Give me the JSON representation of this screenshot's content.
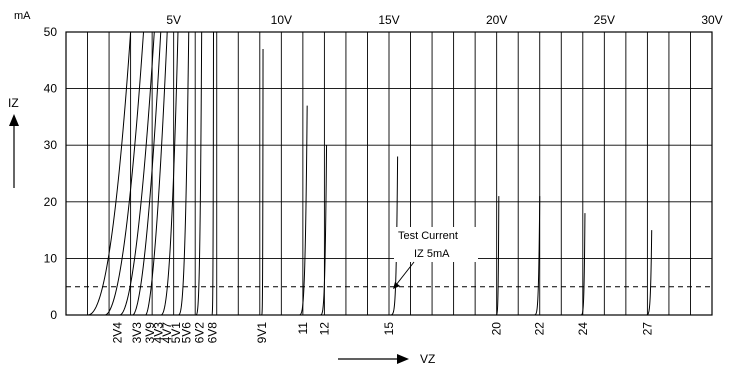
{
  "chart_data": {
    "type": "line",
    "title": "",
    "y_unit": "mA",
    "ylabel": "IZ",
    "xlabel": "VZ",
    "xlim": [
      0,
      30
    ],
    "ylim": [
      0,
      50
    ],
    "grid": true,
    "x_top_ticks": [
      {
        "v": 5,
        "label": "5V"
      },
      {
        "v": 10,
        "label": "10V"
      },
      {
        "v": 15,
        "label": "15V"
      },
      {
        "v": 20,
        "label": "20V"
      },
      {
        "v": 25,
        "label": "25V"
      },
      {
        "v": 30,
        "label": "30V"
      }
    ],
    "y_ticks": [
      {
        "v": 0,
        "label": "0"
      },
      {
        "v": 10,
        "label": "10"
      },
      {
        "v": 20,
        "label": "20"
      },
      {
        "v": 30,
        "label": "30"
      },
      {
        "v": 40,
        "label": "40"
      },
      {
        "v": 50,
        "label": "50"
      }
    ],
    "test_current": {
      "value": 5,
      "label_line1": "Test Current",
      "label_line2": "IZ 5mA"
    },
    "series": [
      {
        "name": "2V4",
        "vz": 2.4,
        "v_start": 1.0,
        "v_end": 3.0,
        "i_max": 50,
        "steep": 2.2
      },
      {
        "name": "3V3",
        "vz": 3.3,
        "v_start": 1.8,
        "v_end": 3.6,
        "i_max": 50,
        "steep": 2.0
      },
      {
        "name": "3V9",
        "vz": 3.9,
        "v_start": 2.5,
        "v_end": 4.1,
        "i_max": 50,
        "steep": 1.9
      },
      {
        "name": "4V3",
        "vz": 4.3,
        "v_start": 3.1,
        "v_end": 4.4,
        "i_max": 50,
        "steep": 1.8
      },
      {
        "name": "4V7",
        "vz": 4.7,
        "v_start": 3.7,
        "v_end": 4.7,
        "i_max": 50,
        "steep": 1.7
      },
      {
        "name": "5V1",
        "vz": 5.1,
        "v_start": 4.4,
        "v_end": 5.2,
        "i_max": 50,
        "steep": 2.4
      },
      {
        "name": "5V6",
        "vz": 5.6,
        "v_start": 5.2,
        "v_end": 5.7,
        "i_max": 50,
        "steep": 3.0
      },
      {
        "name": "6V2",
        "vz": 6.2,
        "v_start": 6.0,
        "v_end": 6.3,
        "i_max": 50,
        "steep": 4.0
      },
      {
        "name": "6V8",
        "vz": 6.8,
        "v_start": 6.75,
        "v_end": 6.85,
        "i_max": 50,
        "steep": 6.0
      },
      {
        "name": "9V1",
        "vz": 9.1,
        "v_start": 9.05,
        "v_end": 9.15,
        "i_max": 47,
        "steep": 8.0
      },
      {
        "name": "11",
        "vz": 11,
        "v_start": 10.75,
        "v_end": 11.2,
        "i_max": 37,
        "steep": 5.0
      },
      {
        "name": "12",
        "vz": 12,
        "v_start": 11.75,
        "v_end": 12.1,
        "i_max": 30,
        "steep": 5.0
      },
      {
        "name": "15",
        "vz": 15,
        "v_start": 14.9,
        "v_end": 15.4,
        "i_max": 28,
        "steep": 8.0
      },
      {
        "name": "20",
        "vz": 20,
        "v_start": 19.9,
        "v_end": 20.1,
        "i_max": 21,
        "steep": 8.0
      },
      {
        "name": "22",
        "vz": 22,
        "v_start": 21.6,
        "v_end": 22.0,
        "i_max": 21,
        "steep": 8.0
      },
      {
        "name": "24",
        "vz": 24,
        "v_start": 23.8,
        "v_end": 24.1,
        "i_max": 18,
        "steep": 8.0
      },
      {
        "name": "27",
        "vz": 27,
        "v_start": 26.8,
        "v_end": 27.2,
        "i_max": 15,
        "steep": 8.0
      }
    ]
  }
}
